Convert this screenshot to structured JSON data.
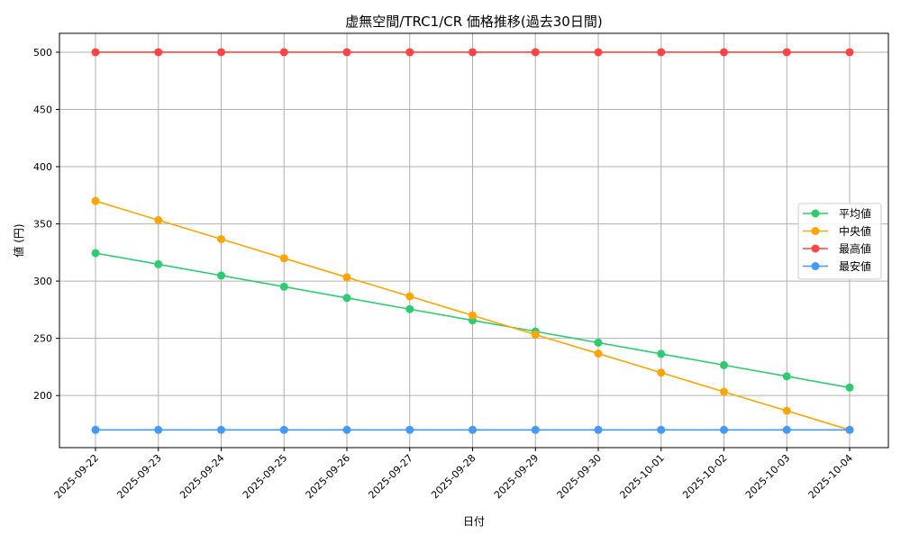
{
  "chart_data": {
    "type": "line",
    "title": "虚無空間/TRC1/CR 価格推移(過去30日間)",
    "xlabel": "日付",
    "ylabel": "値 (円)",
    "ylim": [
      154.5,
      516.5
    ],
    "yticks": [
      200,
      250,
      300,
      350,
      400,
      450,
      500
    ],
    "grid": true,
    "legend_position": "center-right",
    "categories": [
      "2025-09-22",
      "2025-09-23",
      "2025-09-24",
      "2025-09-25",
      "2025-09-26",
      "2025-09-27",
      "2025-09-28",
      "2025-09-29",
      "2025-09-30",
      "2025-10-01",
      "2025-10-02",
      "2025-10-03",
      "2025-10-04"
    ],
    "series": [
      {
        "name": "平均値",
        "color": "#2ecc71",
        "values": [
          324.5,
          314.7,
          304.9,
          295.1,
          285.3,
          275.5,
          265.7,
          256.0,
          246.2,
          236.4,
          226.6,
          216.8,
          207.0
        ]
      },
      {
        "name": "中央値",
        "color": "#ffa500",
        "values": [
          370.0,
          353.3,
          336.7,
          320.0,
          303.3,
          286.7,
          270.0,
          253.3,
          236.7,
          220.0,
          203.3,
          186.7,
          170.0
        ]
      },
      {
        "name": "最高値",
        "color": "#ff4444",
        "values": [
          500,
          500,
          500,
          500,
          500,
          500,
          500,
          500,
          500,
          500,
          500,
          500,
          500
        ]
      },
      {
        "name": "最安値",
        "color": "#4499ff",
        "values": [
          170,
          170,
          170,
          170,
          170,
          170,
          170,
          170,
          170,
          170,
          170,
          170,
          170
        ]
      }
    ]
  }
}
